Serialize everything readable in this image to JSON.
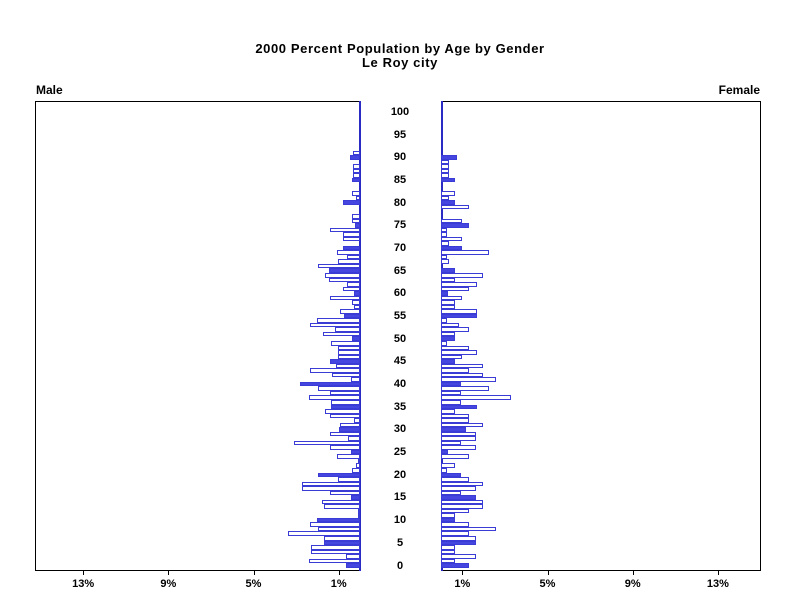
{
  "chart_data": {
    "type": "bar",
    "subtype": "population-pyramid",
    "title": "2000 Percent Population by Age by Gender",
    "subtitle": "Le Roy city",
    "left_label": "Male",
    "right_label": "Female",
    "age_axis": {
      "tick_labels": [
        0,
        5,
        10,
        15,
        20,
        25,
        30,
        35,
        40,
        45,
        50,
        55,
        60,
        65,
        70,
        75,
        80,
        85,
        90,
        95,
        100
      ],
      "unit": "years single-year bars, ages 0-100"
    },
    "x_axis": {
      "tick_values_percent": [
        1,
        5,
        9,
        13
      ],
      "tick_labels": [
        "1%",
        "5%",
        "9%",
        "13%"
      ],
      "axis_max_percent": 15.3,
      "grid": false
    },
    "style_rule": "bars at ages that are multiples of 5 are solid filled; all other ages are hollow outlined",
    "colors": {
      "bar_fill": "#4545e0",
      "bar_outline": "#3b3bd6",
      "center_axis": "#2a2ac4",
      "frame": "#000000",
      "text": "#000000"
    },
    "series": [
      {
        "name": "Male",
        "side": "left",
        "values_percent_by_age": [
          0.65,
          2.4,
          0.65,
          2.3,
          2.3,
          1.7,
          1.67,
          3.37,
          1.95,
          2.36,
          2.0,
          0.1,
          0.1,
          1.7,
          1.8,
          0.4,
          1.4,
          2.7,
          2.73,
          1.04,
          1.97,
          0.37,
          0.19,
          0.1,
          1.09,
          0.4,
          1.4,
          3.1,
          0.54,
          1.4,
          1.0,
          0.96,
          0.26,
          1.4,
          1.66,
          1.35,
          1.35,
          2.4,
          1.4,
          1.98,
          2.82,
          0.42,
          1.32,
          2.36,
          1.12,
          1.4,
          1.05,
          1.04,
          1.04,
          1.38,
          0.37,
          1.72,
          1.18,
          2.36,
          2.0,
          0.73,
          0.95,
          0.26,
          0.37,
          1.4,
          0.26,
          0.81,
          0.62,
          1.47,
          1.64,
          1.47,
          1.95,
          1.04,
          0.62,
          1.08,
          0.78,
          0.0,
          0.78,
          0.78,
          1.4,
          0.23,
          0.39,
          0.39,
          0.0,
          0.0,
          0.78,
          0.2,
          0.37,
          0.0,
          0.0,
          0.37,
          0.33,
          0.33,
          0.33,
          0.0,
          0.45,
          0.33,
          0.0,
          0.0,
          0.0,
          0.0,
          0.0,
          0.0,
          0.0,
          0.0,
          0.0
        ]
      },
      {
        "name": "Female",
        "side": "right",
        "values_percent_by_age": [
          1.3,
          0.65,
          1.64,
          0.65,
          0.65,
          1.64,
          1.64,
          1.3,
          2.6,
          1.3,
          0.65,
          0.65,
          1.3,
          1.95,
          1.95,
          1.64,
          0.94,
          1.64,
          1.95,
          1.3,
          0.94,
          0.28,
          0.65,
          0.0,
          1.3,
          0.33,
          1.64,
          0.94,
          1.64,
          1.64,
          1.18,
          1.95,
          1.3,
          1.3,
          0.65,
          1.69,
          0.94,
          3.27,
          0.94,
          2.26,
          0.94,
          2.6,
          1.95,
          1.3,
          1.95,
          0.65,
          0.98,
          1.69,
          1.3,
          0.28,
          0.65,
          0.65,
          1.3,
          0.84,
          0.28,
          1.69,
          1.69,
          0.65,
          0.65,
          1.0,
          0.33,
          1.3,
          1.69,
          0.65,
          1.95,
          0.65,
          0.0,
          0.37,
          0.28,
          2.26,
          0.98,
          0.37,
          0.98,
          0.28,
          0.28,
          1.3,
          0.98,
          0.0,
          0.0,
          1.33,
          0.65,
          0.37,
          0.65,
          0.0,
          0.0,
          0.65,
          0.37,
          0.37,
          0.37,
          0.37,
          0.74,
          0.0,
          0.0,
          0.0,
          0.0,
          0.0,
          0.0,
          0.0,
          0.0,
          0.0,
          0.0
        ]
      }
    ]
  }
}
